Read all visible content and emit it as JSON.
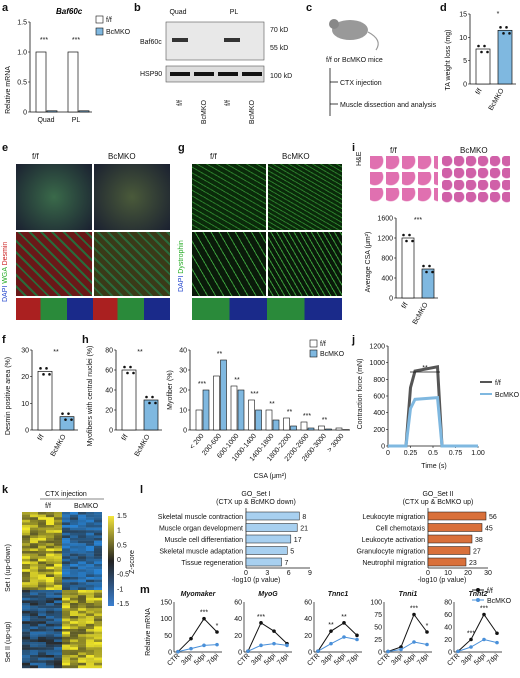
{
  "labels": {
    "a": "a",
    "b": "b",
    "c": "c",
    "d": "d",
    "e": "e",
    "f": "f",
    "g": "g",
    "h": "h",
    "i": "i",
    "j": "j",
    "k": "k",
    "l": "l",
    "m": "m"
  },
  "colors": {
    "ff": "#ffffff",
    "bcmko": "#7fb8e0",
    "bcmko_line": "#4a90d9",
    "orange": "#d9703a",
    "heat_hi": "#f5e63c",
    "heat_lo": "#3a7fd0",
    "green": "#3fbf3f",
    "red": "#cc2222"
  },
  "common": {
    "ff": "f/f",
    "bcmko": "BcMKO",
    "sig3": "***",
    "sig2": "**",
    "sig1": "*"
  },
  "panel_a": {
    "title": "Baf60c",
    "ylabel": "Relative mRNA",
    "yticks": [
      "0",
      "0.5",
      "1.0",
      "1.5"
    ],
    "groups": [
      "Quad",
      "PL"
    ]
  },
  "panel_b": {
    "groups": [
      "Quad",
      "PL"
    ],
    "bands": [
      "Baf60c",
      "HSP90"
    ],
    "sizes": [
      "70 kD",
      "55 kD",
      "100 kD"
    ],
    "lanes": [
      "f/f",
      "BcMKO",
      "f/f",
      "BcMKO"
    ]
  },
  "panel_c": {
    "mice": "f/f or BcMKO mice",
    "step1": "CTX injection",
    "step2": "Muscle dissection and analysis"
  },
  "panel_d": {
    "ylabel": "TA weight loss (mg)",
    "yticks": [
      "0",
      "5",
      "10",
      "15"
    ]
  },
  "panel_e": {
    "stains": [
      "DAPI",
      "WGA",
      "Desmin"
    ]
  },
  "panel_f": {
    "ylabel": "Desmin positive area (%)",
    "yticks": [
      "0",
      "10",
      "20",
      "30"
    ]
  },
  "panel_g": {
    "stains": [
      "DAPI",
      "Dystrophin"
    ]
  },
  "panel_h1": {
    "ylabel": "Myofibers with central nuclei (%)",
    "yticks": [
      "0",
      "20",
      "40",
      "60",
      "80"
    ]
  },
  "panel_h2": {
    "ylabel": "Myofiber (%)",
    "yticks": [
      "0",
      "10",
      "20",
      "30",
      "40"
    ],
    "xlabel": "CSA (μm²)",
    "categories": [
      "< 200",
      "200-600",
      "600-1000",
      "1000-1400",
      "1400-1800",
      "1800-2200",
      "2200-2600",
      "2600-3000",
      "> 3000"
    ],
    "sig": [
      "***",
      "**",
      "**",
      "***",
      "**",
      "**",
      "***",
      "**",
      ""
    ]
  },
  "panel_i": {
    "stain": "H&E",
    "ylabel": "Average CSA (μm²)",
    "yticks": [
      "0",
      "400",
      "800",
      "1200",
      "1600"
    ]
  },
  "panel_j": {
    "ylabel": "Contraction force (mN)",
    "xlabel": "Time (s)",
    "yticks": [
      "0",
      "200",
      "400",
      "600",
      "800",
      "1000",
      "1200"
    ],
    "xticks": [
      "0",
      "0.25",
      "0.5",
      "0.75",
      "1.00"
    ],
    "legend": [
      "f/f",
      "BcMKO"
    ]
  },
  "panel_k": {
    "header": "CTX injection",
    "cols": [
      "f/f",
      "BcMKO"
    ],
    "set1": "Set I (up-down)",
    "set2": "Set II (up-up)",
    "zlabel": "Z-score",
    "zticks": [
      "1.5",
      "1",
      "0.5",
      "0",
      "-0.5",
      "-1",
      "-1.5"
    ]
  },
  "panel_l": {
    "left": {
      "title": "GO_Set I",
      "subtitle": "(CTX up & BcMKO down)",
      "terms": [
        "Skeletal muscle contraction",
        "Muscle organ development",
        "Muscle cell differentiation",
        "Skeletal muscle adaptation",
        "Tissue regeneration"
      ],
      "counts": [
        "8",
        "21",
        "17",
        "5",
        "7"
      ],
      "xticks": [
        "0",
        "3",
        "6",
        "9"
      ],
      "xlabel": "-log10 (p value)"
    },
    "right": {
      "title": "GO_Set II",
      "subtitle": "(CTX up & BcMKO up)",
      "terms": [
        "Leukocyte migration",
        "Cell chemotaxis",
        "Leukocyte activation",
        "Granulocyte migration",
        "Neutrophil migration"
      ],
      "counts": [
        "56",
        "45",
        "38",
        "27",
        "23"
      ],
      "xticks": [
        "0",
        "10",
        "20",
        "30"
      ],
      "xlabel": "-log10 (p value)"
    }
  },
  "panel_m": {
    "ylabel": "Relative mRNA",
    "genes": [
      "Myomaker",
      "MyoG",
      "Tnnc1",
      "Tnni1",
      "Tnnt2"
    ],
    "xticks": [
      "CTR",
      "3dpi",
      "5dpi",
      "7dpi"
    ],
    "legend": [
      "f/f",
      "BcMKO"
    ]
  },
  "chart_data": [
    {
      "type": "bar",
      "panel": "a",
      "categories": [
        "Quad",
        "PL"
      ],
      "series": [
        {
          "name": "f/f",
          "values": [
            1.0,
            1.0
          ]
        },
        {
          "name": "BcMKO",
          "values": [
            0.02,
            0.02
          ]
        }
      ],
      "ylim": [
        0,
        1.5
      ]
    },
    {
      "type": "bar",
      "panel": "d",
      "categories": [
        "f/f",
        "BcMKO"
      ],
      "values": [
        7.5,
        11.5
      ],
      "ylim": [
        0,
        15
      ]
    },
    {
      "type": "bar",
      "panel": "f",
      "categories": [
        "f/f",
        "BcMKO"
      ],
      "values": [
        22,
        5
      ],
      "ylim": [
        0,
        30
      ]
    },
    {
      "type": "bar",
      "panel": "h1",
      "categories": [
        "f/f",
        "BcMKO"
      ],
      "values": [
        60,
        30
      ],
      "ylim": [
        0,
        80
      ]
    },
    {
      "type": "bar",
      "panel": "h2",
      "categories": [
        "< 200",
        "200-600",
        "600-1000",
        "1000-1400",
        "1400-1800",
        "1800-2200",
        "2200-2600",
        "2600-3000",
        "> 3000"
      ],
      "series": [
        {
          "name": "f/f",
          "values": [
            10,
            27,
            22,
            15,
            10,
            6,
            4,
            2,
            1
          ]
        },
        {
          "name": "BcMKO",
          "values": [
            20,
            35,
            20,
            10,
            5,
            2,
            1,
            0.5,
            0.2
          ]
        }
      ],
      "ylim": [
        0,
        40
      ]
    },
    {
      "type": "bar",
      "panel": "i",
      "categories": [
        "f/f",
        "BcMKO"
      ],
      "values": [
        1200,
        580
      ],
      "ylim": [
        0,
        1600
      ]
    },
    {
      "type": "line",
      "panel": "j",
      "series": [
        {
          "name": "f/f",
          "x": [
            0,
            0.2,
            0.25,
            0.3,
            0.55,
            0.6,
            0.75,
            1.0
          ],
          "y": [
            0,
            0,
            700,
            900,
            950,
            0,
            0,
            0
          ]
        },
        {
          "name": "BcMKO",
          "x": [
            0,
            0.2,
            0.25,
            0.3,
            0.55,
            0.6,
            0.75,
            1.0
          ],
          "y": [
            0,
            0,
            450,
            560,
            580,
            0,
            0,
            0
          ]
        }
      ],
      "xlim": [
        0,
        1.0
      ],
      "ylim": [
        0,
        1200
      ]
    },
    {
      "type": "bar",
      "panel": "l-left",
      "categories": [
        "Skeletal muscle contraction",
        "Muscle organ development",
        "Muscle cell differentiation",
        "Skeletal muscle adaptation",
        "Tissue regeneration"
      ],
      "values": [
        7.5,
        7.2,
        6.3,
        5.8,
        5.0
      ],
      "xlim": [
        0,
        9
      ]
    },
    {
      "type": "bar",
      "panel": "l-right",
      "categories": [
        "Leukocyte migration",
        "Cell chemotaxis",
        "Leukocyte activation",
        "Granulocyte migration",
        "Neutrophil migration"
      ],
      "values": [
        29,
        27,
        22,
        21,
        19
      ],
      "xlim": [
        0,
        30
      ]
    },
    {
      "type": "line",
      "panel": "m",
      "categories": [
        "CTR",
        "3dpi",
        "5dpi",
        "7dpi"
      ],
      "genes": [
        {
          "name": "Myomaker",
          "ymax": 150,
          "yticks": [
            "0",
            "50",
            "100",
            "150"
          ],
          "ff": [
            1,
            40,
            100,
            60
          ],
          "ko": [
            1,
            10,
            20,
            22
          ],
          "sig": [
            "",
            "",
            "***",
            "*"
          ]
        },
        {
          "name": "MyoG",
          "ymax": 60,
          "yticks": [
            "0",
            "20",
            "40",
            "60"
          ],
          "ff": [
            1,
            35,
            25,
            10
          ],
          "ko": [
            1,
            8,
            10,
            8
          ],
          "sig": [
            "",
            "***",
            "",
            ""
          ]
        },
        {
          "name": "Tnnc1",
          "ymax": 60,
          "yticks": [
            "0",
            "20",
            "40",
            "60"
          ],
          "ff": [
            1,
            25,
            35,
            20
          ],
          "ko": [
            1,
            10,
            18,
            15
          ],
          "sig": [
            "",
            "**",
            "**",
            ""
          ]
        },
        {
          "name": "Tnni1",
          "ymax": 100,
          "yticks": [
            "0",
            "25",
            "50",
            "75",
            "100"
          ],
          "ff": [
            1,
            10,
            75,
            40
          ],
          "ko": [
            1,
            5,
            20,
            15
          ],
          "sig": [
            "",
            "",
            "***",
            "*"
          ]
        },
        {
          "name": "Tnnt2",
          "ymax": 80,
          "yticks": [
            "0",
            "20",
            "40",
            "60",
            "80"
          ],
          "ff": [
            1,
            20,
            60,
            30
          ],
          "ko": [
            1,
            8,
            20,
            15
          ],
          "sig": [
            "",
            "***",
            "***",
            ""
          ]
        }
      ]
    }
  ]
}
